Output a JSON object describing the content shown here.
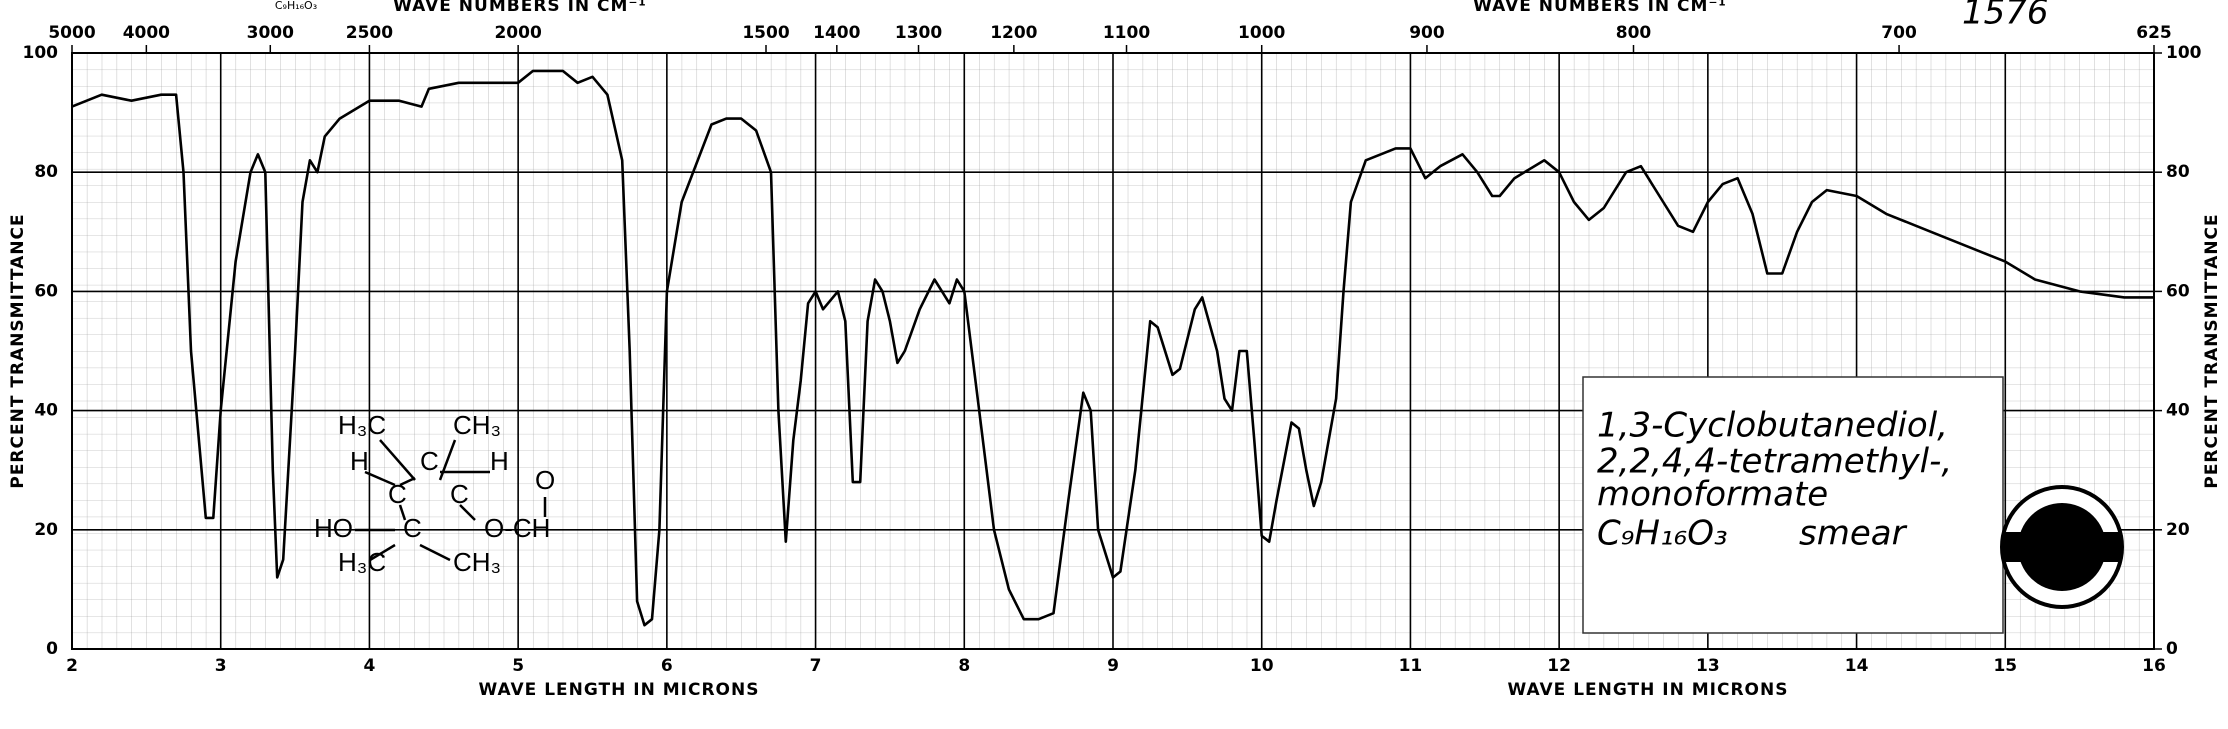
{
  "chart_data": {
    "type": "line",
    "top_axis_label": "WAVE NUMBERS IN CM⁻¹",
    "top_axis_label_right": "WAVE NUMBERS IN CM⁻¹",
    "formula_small": "C₉H₁₆O₃",
    "spectrum_number": "1576",
    "xlabel": "WAVE LENGTH IN MICRONS",
    "xlabel_right": "WAVE LENGTH IN MICRONS",
    "ylabel": "PERCENT TRANSMITTANCE",
    "y2label": "PERCENT TRANSMITTANCE",
    "xlim": [
      2,
      16
    ],
    "xticks": [
      2,
      3,
      4,
      5,
      6,
      7,
      8,
      9,
      10,
      11,
      12,
      13,
      14,
      15,
      16
    ],
    "x2ticks": [
      5000,
      4000,
      3000,
      2500,
      2000,
      1500,
      1400,
      1300,
      1200,
      1100,
      1000,
      900,
      800,
      700,
      625
    ],
    "ylim": [
      0,
      100
    ],
    "yticks": [
      0,
      20,
      40,
      60,
      80,
      100
    ],
    "y2lim": [
      0,
      100
    ],
    "y2ticks": [
      0,
      20,
      40,
      60,
      80,
      100
    ],
    "grid": true,
    "x": [
      2.0,
      2.2,
      2.4,
      2.6,
      2.7,
      2.75,
      2.8,
      2.9,
      2.95,
      3.0,
      3.1,
      3.2,
      3.25,
      3.3,
      3.35,
      3.38,
      3.42,
      3.5,
      3.55,
      3.6,
      3.65,
      3.7,
      3.8,
      4.0,
      4.2,
      4.35,
      4.4,
      4.6,
      4.8,
      5.0,
      5.1,
      5.3,
      5.4,
      5.5,
      5.6,
      5.7,
      5.75,
      5.8,
      5.85,
      5.9,
      5.95,
      6.0,
      6.1,
      6.3,
      6.4,
      6.5,
      6.6,
      6.7,
      6.75,
      6.8,
      6.85,
      6.9,
      6.95,
      7.0,
      7.05,
      7.15,
      7.2,
      7.25,
      7.3,
      7.35,
      7.4,
      7.45,
      7.5,
      7.55,
      7.6,
      7.7,
      7.8,
      7.85,
      7.9,
      7.95,
      8.0,
      8.1,
      8.2,
      8.3,
      8.4,
      8.5,
      8.6,
      8.7,
      8.8,
      8.85,
      8.9,
      9.0,
      9.05,
      9.15,
      9.25,
      9.3,
      9.4,
      9.45,
      9.55,
      9.6,
      9.7,
      9.75,
      9.8,
      9.85,
      9.9,
      9.95,
      10.0,
      10.05,
      10.1,
      10.2,
      10.25,
      10.3,
      10.35,
      10.4,
      10.5,
      10.55,
      10.6,
      10.7,
      10.9,
      11.0,
      11.1,
      11.2,
      11.35,
      11.45,
      11.55,
      11.6,
      11.7,
      11.9,
      12.0,
      12.1,
      12.2,
      12.3,
      12.45,
      12.55,
      12.7,
      12.8,
      12.9,
      13.0,
      13.1,
      13.2,
      13.3,
      13.4,
      13.5,
      13.6,
      13.7,
      13.8,
      14.0,
      14.2,
      14.5,
      14.8,
      15.0,
      15.2,
      15.5,
      15.8,
      16.0
    ],
    "series": [
      {
        "color": "#000000",
        "values": [
          91,
          93,
          92,
          93,
          93,
          80,
          50,
          22,
          22,
          40,
          65,
          80,
          83,
          80,
          30,
          12,
          15,
          50,
          75,
          82,
          80,
          86,
          89,
          92,
          92,
          91,
          94,
          95,
          95,
          95,
          97,
          97,
          95,
          96,
          93,
          82,
          50,
          8,
          4,
          5,
          20,
          60,
          75,
          88,
          89,
          89,
          87,
          80,
          40,
          18,
          35,
          45,
          58,
          60,
          57,
          60,
          55,
          28,
          28,
          55,
          62,
          60,
          55,
          48,
          50,
          57,
          62,
          60,
          58,
          62,
          60,
          40,
          20,
          10,
          5,
          5,
          6,
          25,
          43,
          40,
          20,
          12,
          13,
          30,
          55,
          54,
          46,
          47,
          57,
          59,
          50,
          42,
          40,
          50,
          50,
          35,
          19,
          18,
          25,
          38,
          37,
          30,
          24,
          28,
          42,
          60,
          75,
          82,
          84,
          84,
          79,
          81,
          83,
          80,
          76,
          76,
          79,
          82,
          80,
          75,
          72,
          74,
          80,
          81,
          75,
          71,
          70,
          75,
          78,
          79,
          73,
          63,
          63,
          70,
          75,
          77,
          76,
          73,
          70,
          67,
          65,
          62,
          60,
          59,
          59
        ]
      }
    ],
    "structure": [
      "H₃C",
      "CH₃",
      "H",
      "C",
      "H",
      "O",
      "C",
      "C",
      "HO",
      "C",
      "O-CH",
      "H₃C",
      "CH₃"
    ],
    "compound": [
      "1,3-Cyclobutanediol,",
      "2,2,4,4-tetramethyl-,",
      "monoformate",
      "C₉H₁₆O₃",
      "smear"
    ]
  }
}
